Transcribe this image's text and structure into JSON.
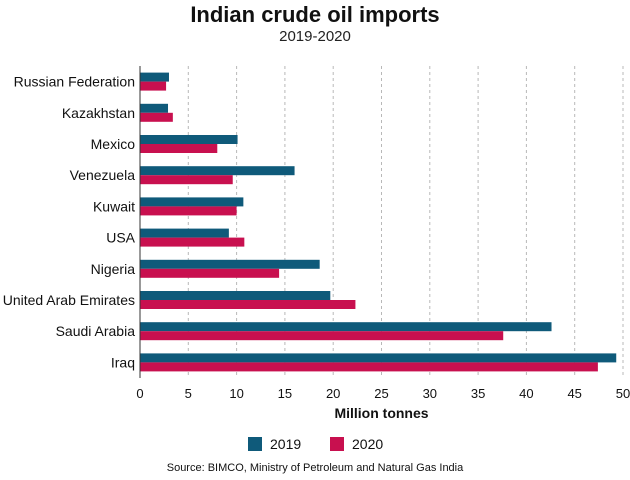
{
  "title": "Indian crude oil imports",
  "subtitle": "2019-2020",
  "source": "Source: BIMCO, Ministry of Petroleum and Natural Gas India",
  "colors": {
    "s2019": "#0f5a7a",
    "s2020": "#c8104f"
  },
  "chart_data": {
    "type": "bar",
    "orientation": "horizontal",
    "title": "Indian crude oil imports",
    "subtitle": "2019-2020",
    "xlabel": "Million tonnes",
    "ylabel": "",
    "categories": [
      "Russian Federation",
      "Kazakhstan",
      "Mexico",
      "Venezuela",
      "Kuwait",
      "USA",
      "Nigeria",
      "United Arab Emirates",
      "Saudi Arabia",
      "Iraq"
    ],
    "series": [
      {
        "name": "2019",
        "color": "#0f5a7a",
        "values": [
          3.0,
          2.9,
          10.1,
          16.0,
          10.7,
          9.2,
          18.6,
          19.7,
          42.6,
          49.3
        ]
      },
      {
        "name": "2020",
        "color": "#c8104f",
        "values": [
          2.7,
          3.4,
          8.0,
          9.6,
          10.0,
          10.8,
          14.4,
          22.3,
          37.6,
          47.4
        ]
      }
    ],
    "xlim": [
      0,
      50
    ],
    "xticks": [
      0,
      5,
      10,
      15,
      20,
      25,
      30,
      35,
      40,
      45,
      50
    ],
    "grid": "vertical dashed",
    "legend_position": "bottom"
  }
}
